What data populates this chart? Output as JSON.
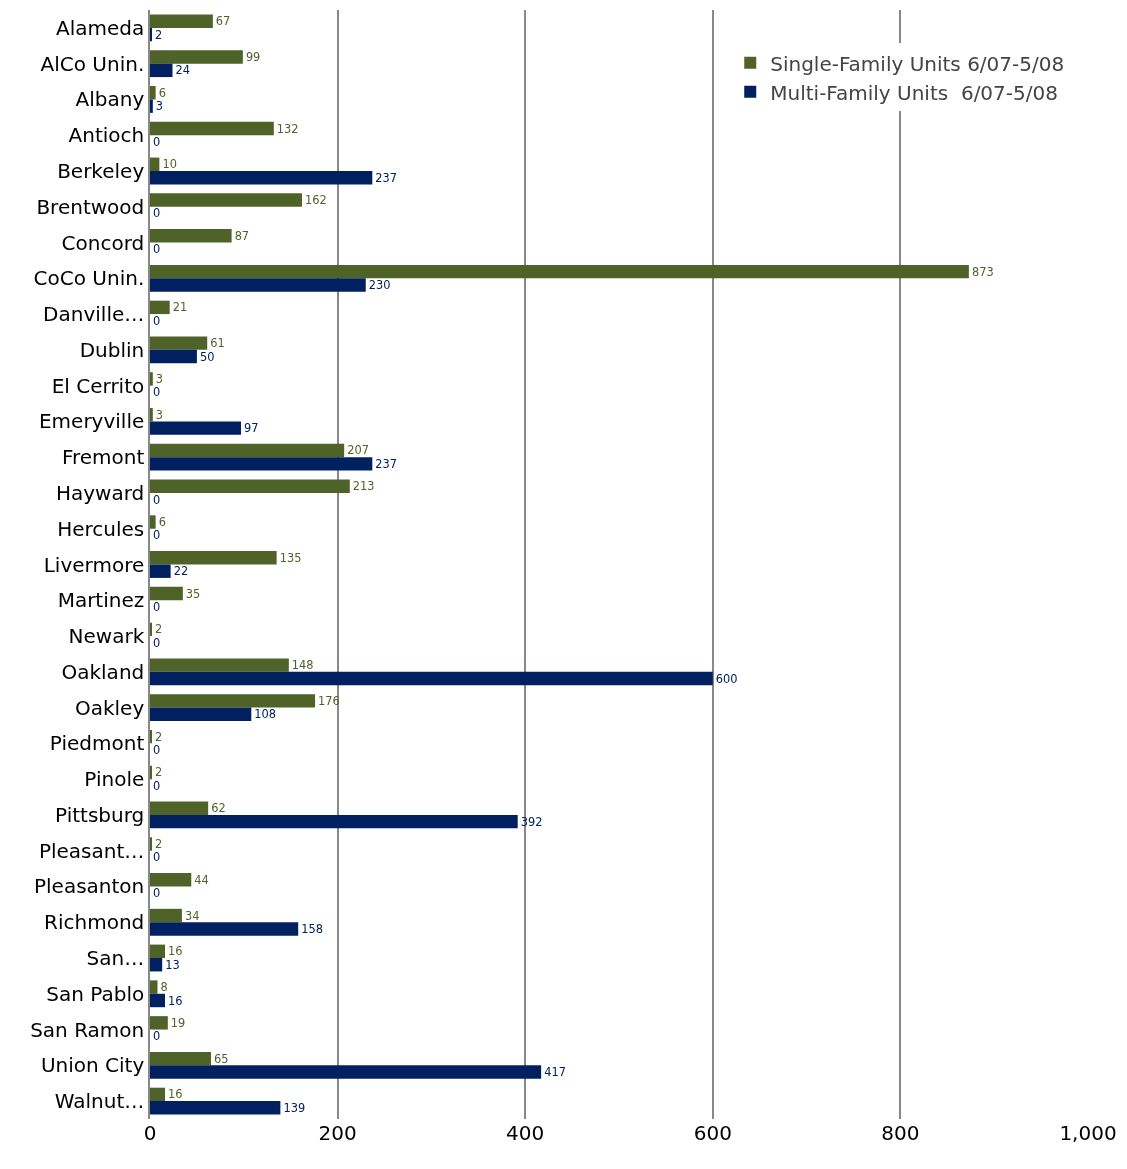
{
  "chart_data": {
    "type": "bar",
    "orientation": "horizontal",
    "categories": [
      "Alameda",
      "AlCo Unin.",
      "Albany",
      "Antioch",
      "Berkeley",
      "Brentwood",
      "Concord",
      "CoCo Unin.",
      "Danville…",
      "Dublin",
      "El Cerrito",
      "Emeryville",
      "Fremont",
      "Hayward",
      "Hercules",
      "Livermore",
      "Martinez",
      "Newark",
      "Oakland",
      "Oakley",
      "Piedmont",
      "Pinole",
      "Pittsburg",
      "Pleasant…",
      "Pleasanton",
      "Richmond",
      "San…",
      "San Pablo",
      "San Ramon",
      "Union City",
      "Walnut…"
    ],
    "series": [
      {
        "name": "Single-Family Units 6/07-5/08",
        "color": "#4f6228",
        "values": [
          67,
          99,
          6,
          132,
          10,
          162,
          87,
          873,
          21,
          61,
          3,
          3,
          207,
          213,
          6,
          135,
          35,
          2,
          148,
          176,
          2,
          2,
          62,
          2,
          44,
          34,
          16,
          8,
          19,
          65,
          16
        ]
      },
      {
        "name": "Multi-Family Units  6/07-5/08",
        "color": "#002060",
        "values": [
          2,
          24,
          3,
          0,
          237,
          0,
          0,
          230,
          0,
          50,
          0,
          97,
          237,
          0,
          0,
          22,
          0,
          0,
          600,
          108,
          0,
          0,
          392,
          0,
          0,
          158,
          13,
          16,
          0,
          417,
          139
        ]
      }
    ],
    "xlim": [
      0,
      1000
    ],
    "xticks": [
      0,
      200,
      400,
      600,
      800,
      {
        "value": 1000,
        "label": "1,000"
      }
    ],
    "grid": "x",
    "legend": "top right",
    "data_labels": true
  }
}
